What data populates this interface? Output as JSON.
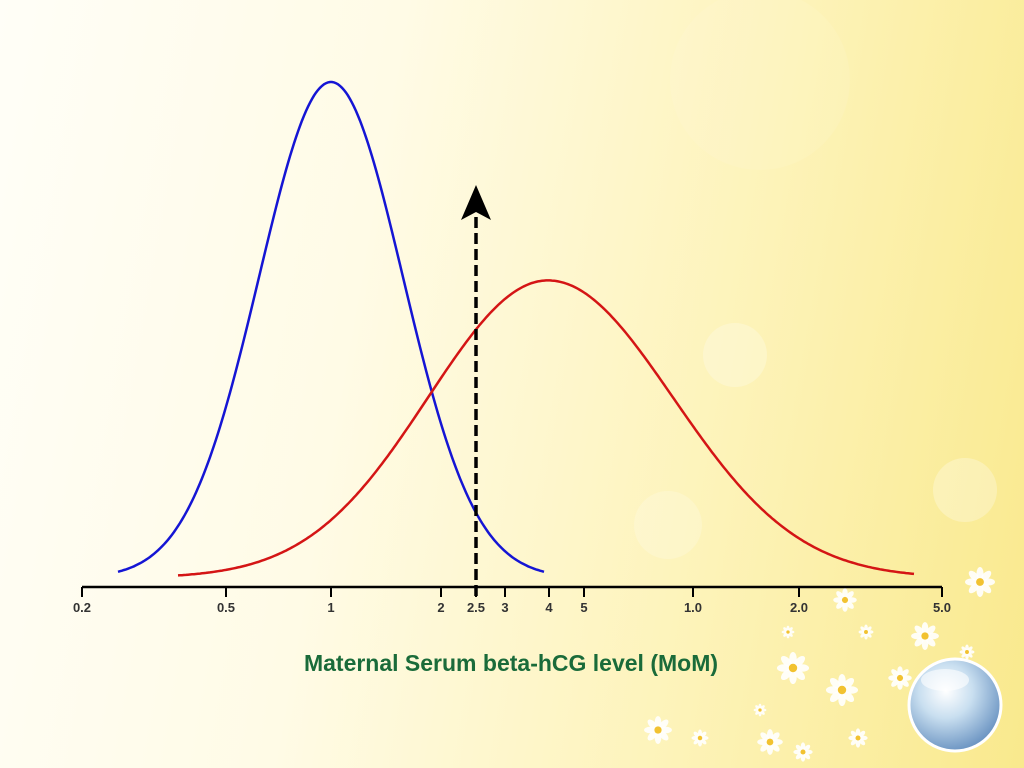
{
  "colors": {
    "blue_curve": "#1515d4",
    "red_curve": "#d41515",
    "cutoff_arrow": "#000000",
    "axis": "#000000",
    "xlabel": "#1a6b3a"
  },
  "chart_data": {
    "type": "line",
    "title": "",
    "xlabel": "Maternal Serum beta-hCG level (MoM)",
    "ylabel": "",
    "x_ticks": [
      "0.2",
      "0.5",
      "1",
      "2",
      "2.5",
      "3",
      "4",
      "5",
      "1.0",
      "2.0",
      "5.0"
    ],
    "series": [
      {
        "color": "blue",
        "peak_x": 1.0,
        "x_range": [
          0.3,
          4.0
        ],
        "relative_peak": 1.0
      },
      {
        "color": "red",
        "peak_x": 4.0,
        "x_range": [
          0.4,
          5.0
        ],
        "relative_peak": 0.6
      }
    ],
    "cutoff": {
      "x": 2.5,
      "style": "dashed arrow"
    },
    "legend": "none",
    "grid": false
  }
}
